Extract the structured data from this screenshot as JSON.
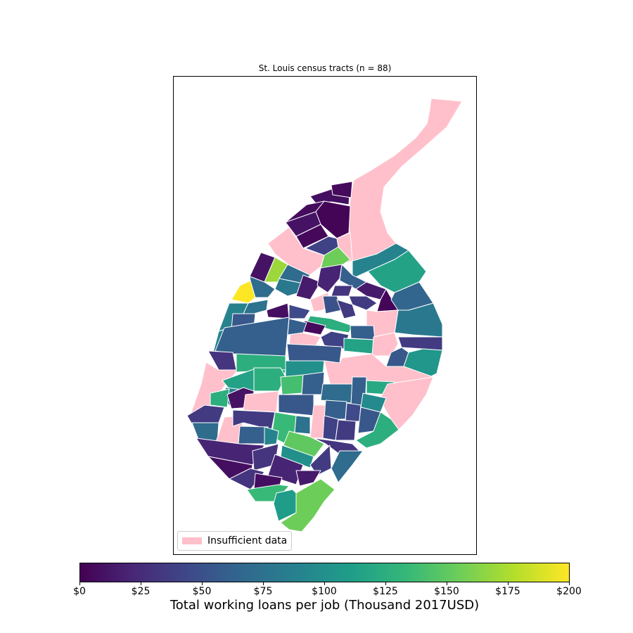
{
  "title": "St. Louis census tracts (n = 88)",
  "legend": {
    "label": "Insufficient data",
    "color": "#ffc0cb"
  },
  "colorbar": {
    "label": "Total working loans per job (Thousand 2017USD)",
    "colormap": "viridis",
    "range": [
      0,
      200
    ],
    "tick_labels": [
      "$0",
      "$25",
      "$50",
      "$75",
      "$100",
      "$125",
      "$150",
      "$175",
      "$200"
    ],
    "tick_values": [
      0,
      25,
      50,
      75,
      100,
      125,
      150,
      175,
      200
    ]
  },
  "colors": {
    "viridis_stops": [
      "#440154",
      "#482878",
      "#3e4989",
      "#31688e",
      "#26828e",
      "#1f9e89",
      "#35b779",
      "#6ece58",
      "#b5de2b",
      "#fde725"
    ],
    "no_data": "#ffc0cb",
    "border": "#ffffff"
  },
  "chart_data": {
    "type": "choropleth",
    "region": "St. Louis census tracts",
    "tract_count": 88,
    "value_unit": "Thousand 2017USD",
    "value_range": [
      0,
      200
    ],
    "no_data_label": "Insufficient data"
  }
}
